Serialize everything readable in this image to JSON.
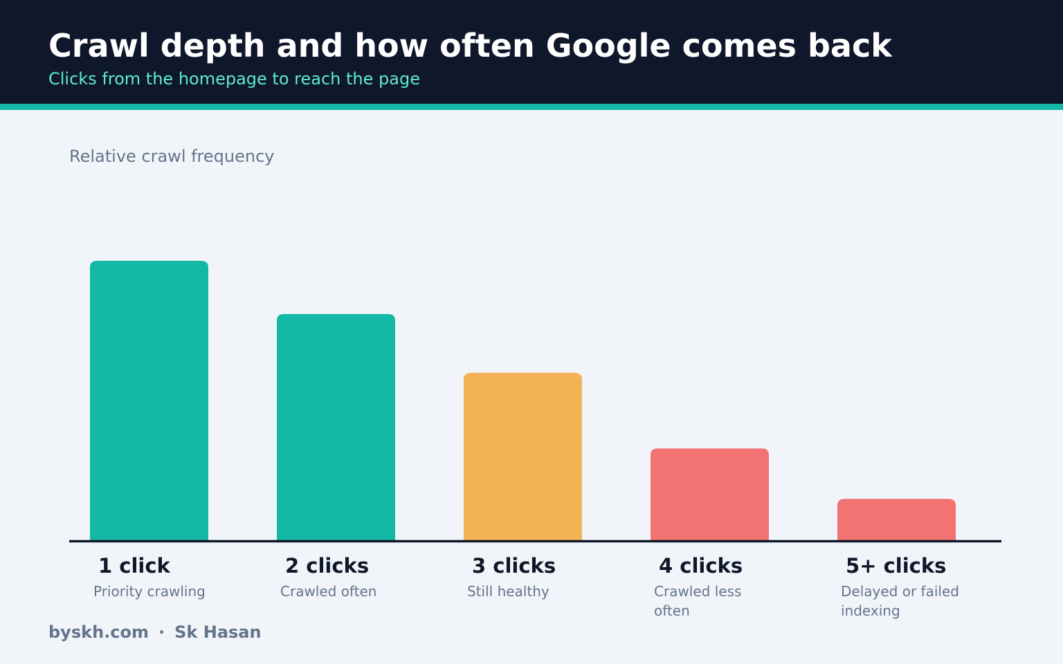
{
  "header": {
    "title": "Crawl depth and how often Google comes back",
    "subtitle": "Clicks from the homepage to reach the page"
  },
  "colors": {
    "header_bg": "#0f172a",
    "accent": "#14b8a6",
    "subtitle": "#5eead4",
    "good": "#14b8a6",
    "warning": "#f4b355",
    "bad": "#f37272",
    "axis": "#0f172a",
    "muted_text": "#64748b"
  },
  "chart_data": {
    "type": "bar",
    "ylabel": "Relative crawl frequency",
    "xlabel": "",
    "ylim": [
      0,
      100
    ],
    "grid": false,
    "categories": [
      "1 click",
      "2 clicks",
      "3 clicks",
      "4 clicks",
      "5+ clicks"
    ],
    "values": [
      100,
      81,
      60,
      33,
      15
    ],
    "descriptions": [
      [
        "Priority crawling"
      ],
      [
        "Crawled often"
      ],
      [
        "Still healthy"
      ],
      [
        "Crawled less",
        "often"
      ],
      [
        "Delayed or failed",
        "indexing"
      ]
    ],
    "bar_colors": [
      "#14b8a6",
      "#14b8a6",
      "#f4b355",
      "#f37272",
      "#f37272"
    ]
  },
  "footer": {
    "site": "byskh.com",
    "separator": "·",
    "author": "Sk Hasan"
  }
}
